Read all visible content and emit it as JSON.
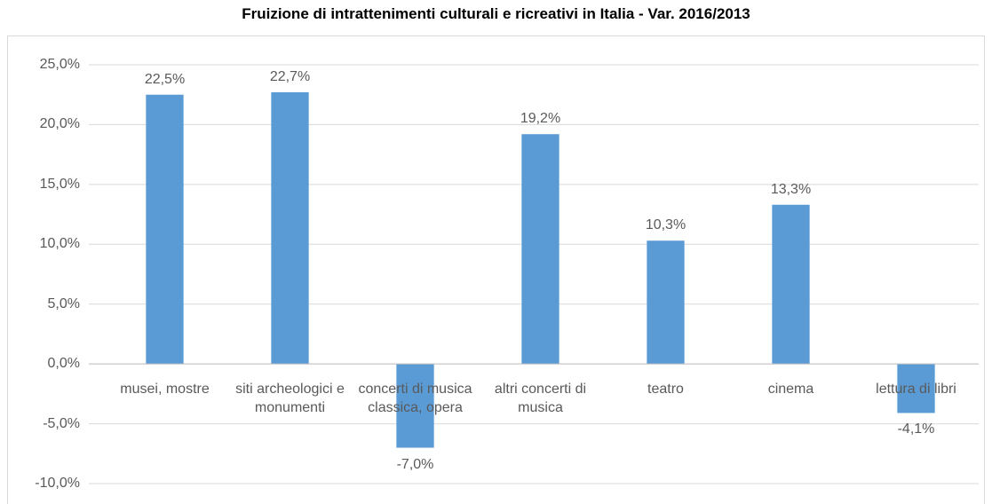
{
  "chart_data": {
    "type": "bar",
    "title": "Fruizione di intrattenimenti culturali e ricreativi in Italia - Var. 2016/2013",
    "categories": [
      "musei, mostre",
      "siti archeologici e monumenti",
      "concerti di musica classica, opera",
      "altri concerti di musica",
      "teatro",
      "cinema",
      "lettura di libri"
    ],
    "values": [
      22.5,
      22.7,
      -7.0,
      19.2,
      10.3,
      13.3,
      -4.1
    ],
    "value_labels": [
      "22,5%",
      "22,7%",
      "-7,0%",
      "19,2%",
      "10,3%",
      "13,3%",
      "-4,1%"
    ],
    "color": "#5b9bd5",
    "ylim": [
      -10,
      25
    ],
    "yticks": [
      {
        "value": -10,
        "label": "-10,0%"
      },
      {
        "value": -5,
        "label": "-5,0%"
      },
      {
        "value": 0,
        "label": "0,0%"
      },
      {
        "value": 5,
        "label": "5,0%"
      },
      {
        "value": 10,
        "label": "10,0%"
      },
      {
        "value": 15,
        "label": "15,0%"
      },
      {
        "value": 20,
        "label": "20,0%"
      },
      {
        "value": 25,
        "label": "25,0%"
      }
    ],
    "grid": true
  }
}
